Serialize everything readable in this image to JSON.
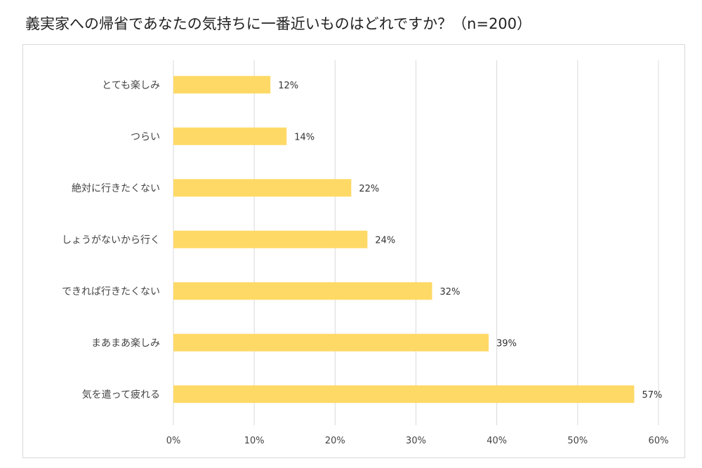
{
  "title": "義実家への帰省であなたの気持ちに一番近いものはどれですか？（n=200）",
  "chart_data": {
    "type": "bar",
    "orientation": "horizontal",
    "categories": [
      "とても楽しみ",
      "つらい",
      "絶対に行きたくない",
      "しょうがないから行く",
      "できれば行きたくない",
      "まあまあ楽しみ",
      "気を遣って疲れる"
    ],
    "values": [
      12,
      14,
      22,
      24,
      32,
      39,
      57
    ],
    "value_labels": [
      "12%",
      "14%",
      "22%",
      "24%",
      "32%",
      "39%",
      "57%"
    ],
    "xlim": [
      0,
      60
    ],
    "x_ticks": [
      0,
      10,
      20,
      30,
      40,
      50,
      60
    ],
    "x_tick_labels": [
      "0%",
      "10%",
      "20%",
      "30%",
      "40%",
      "50%",
      "60%"
    ],
    "grid": true,
    "bar_color": "#FFD966",
    "grid_color": "#d9d9d9"
  }
}
